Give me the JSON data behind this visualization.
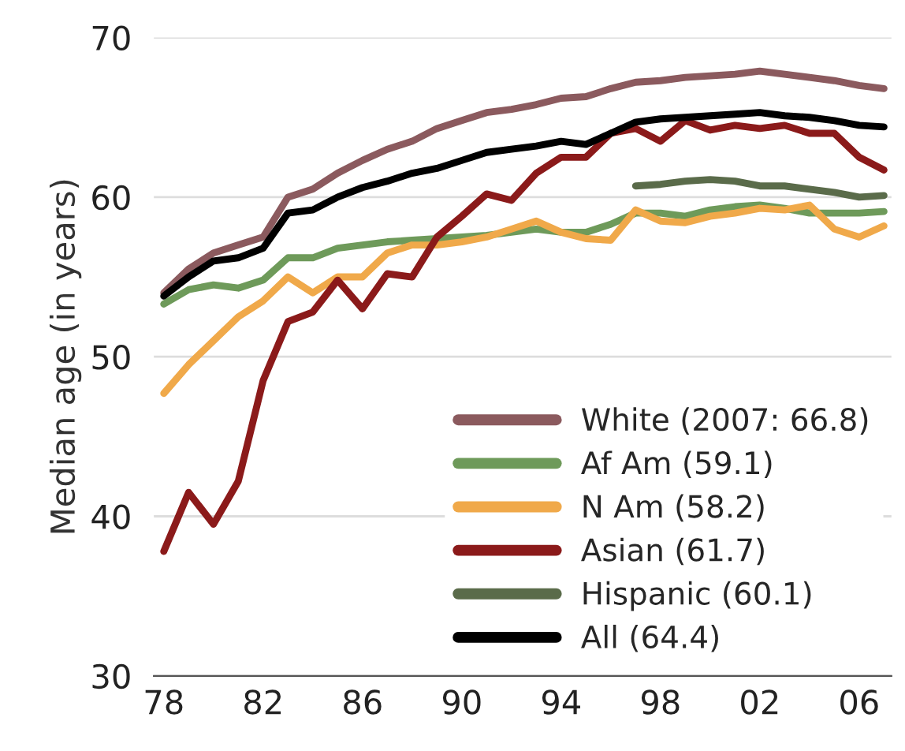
{
  "chart_data": {
    "type": "line",
    "ylabel": "Median age (in years)",
    "x": [
      1978,
      1979,
      1980,
      1981,
      1982,
      1983,
      1984,
      1985,
      1986,
      1987,
      1988,
      1989,
      1990,
      1991,
      1992,
      1993,
      1994,
      1995,
      1996,
      1997,
      1998,
      1999,
      2000,
      2001,
      2002,
      2003,
      2004,
      2005,
      2006,
      2007
    ],
    "series": [
      {
        "name": "White (2007: 66.8)",
        "color": "#8b5a5e",
        "values": [
          54,
          55.5,
          56.5,
          57,
          57.5,
          60,
          60.5,
          61.5,
          62.3,
          63,
          63.5,
          64.3,
          64.8,
          65.3,
          65.5,
          65.8,
          66.2,
          66.3,
          66.8,
          67.2,
          67.3,
          67.5,
          67.6,
          67.7,
          67.9,
          67.7,
          67.5,
          67.3,
          67.0,
          66.8
        ]
      },
      {
        "name": "Af Am (59.1)",
        "color": "#6e9a5a",
        "values": [
          53.3,
          54.2,
          54.5,
          54.3,
          54.8,
          56.2,
          56.2,
          56.8,
          57,
          57.2,
          57.3,
          57.4,
          57.5,
          57.6,
          57.8,
          58,
          57.8,
          57.8,
          58.3,
          59,
          59,
          58.8,
          59.2,
          59.4,
          59.5,
          59.3,
          59,
          59,
          59,
          59.1
        ]
      },
      {
        "name": "N Am (58.2)",
        "color": "#f0a94a",
        "values": [
          47.7,
          49.5,
          51,
          52.5,
          53.5,
          55,
          54,
          55,
          55,
          56.5,
          57,
          57,
          57.2,
          57.5,
          58,
          58.5,
          57.8,
          57.4,
          57.3,
          59.2,
          58.5,
          58.4,
          58.8,
          59,
          59.3,
          59.2,
          59.5,
          58,
          57.5,
          58.2
        ]
      },
      {
        "name": "Asian (61.7)",
        "color": "#8b1a1a",
        "values": [
          37.8,
          41.5,
          39.5,
          42.2,
          48.5,
          52.2,
          52.8,
          54.8,
          53,
          55.2,
          55,
          57.5,
          58.8,
          60.2,
          59.8,
          61.5,
          62.5,
          62.5,
          64,
          64.3,
          63.5,
          64.8,
          64.2,
          64.5,
          64.3,
          64.5,
          64,
          64,
          62.5,
          61.7
        ]
      },
      {
        "name": "Hispanic (60.1)",
        "color": "#5a6b4a",
        "values": [
          null,
          null,
          null,
          null,
          null,
          null,
          null,
          null,
          null,
          null,
          null,
          null,
          null,
          null,
          null,
          null,
          null,
          null,
          null,
          60.7,
          60.8,
          61,
          61.1,
          61,
          60.7,
          60.7,
          60.5,
          60.3,
          60,
          60.1
        ]
      },
      {
        "name": "All (64.4)",
        "color": "#000000",
        "values": [
          53.8,
          55,
          56,
          56.2,
          56.8,
          59,
          59.2,
          60,
          60.6,
          61,
          61.5,
          61.8,
          62.3,
          62.8,
          63,
          63.2,
          63.5,
          63.3,
          64,
          64.7,
          64.9,
          65,
          65.1,
          65.2,
          65.3,
          65.1,
          65,
          64.8,
          64.5,
          64.4
        ]
      }
    ],
    "xlim": [
      1977.6,
      2007.3
    ],
    "xticks": [
      {
        "value": 1978,
        "label": "78"
      },
      {
        "value": 1982,
        "label": "82"
      },
      {
        "value": 1986,
        "label": "86"
      },
      {
        "value": 1990,
        "label": "90"
      },
      {
        "value": 1994,
        "label": "94"
      },
      {
        "value": 1998,
        "label": "98"
      },
      {
        "value": 2002,
        "label": "02"
      },
      {
        "value": 2006,
        "label": "06"
      }
    ],
    "ylim": [
      30,
      70
    ],
    "yticks": [
      30,
      40,
      50,
      60,
      70
    ],
    "grid": "y",
    "legend": "bottom right",
    "marker": "none",
    "line_style": "solid"
  }
}
